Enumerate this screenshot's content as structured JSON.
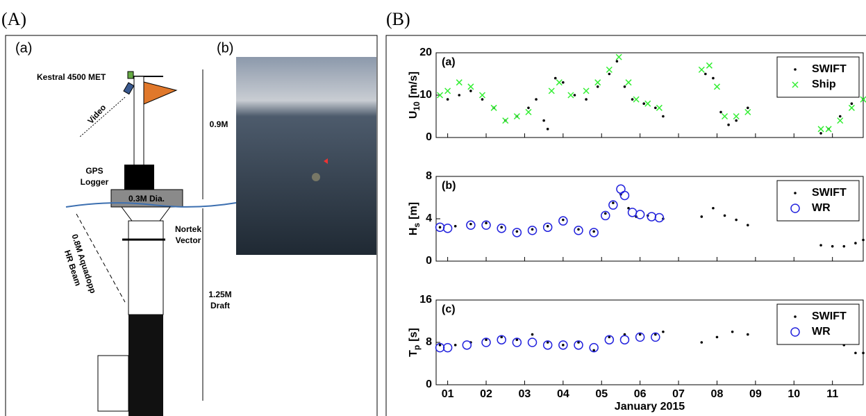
{
  "panel_labels": [
    "(A)",
    "(B)"
  ],
  "diagram": {
    "label": "(a)",
    "photo_label": "(b)",
    "kestral": "Kestral 4500 MET",
    "video": "Video",
    "gps": [
      "GPS",
      "Logger"
    ],
    "dia": "0.3M Dia.",
    "nortek": [
      "Nortek",
      "Vector"
    ],
    "aquadopp": [
      "0.8M Aquadopp",
      "HR Beam"
    ],
    "height": "0.9M",
    "draft": [
      "1.25M",
      "Draft"
    ]
  },
  "chart_data": [
    {
      "type": "scatter",
      "panel": "(a)",
      "ylabel": {
        "symbol": "U",
        "subscript": "10",
        "unit": "[m/s]"
      },
      "xlim": [
        0.7,
        11.8
      ],
      "ylim": [
        0,
        20
      ],
      "yticks": [
        0,
        10,
        20
      ],
      "legend": "upper right",
      "series": [
        {
          "name": "SWIFT",
          "color": "#000000",
          "marker": "dot",
          "x": [
            1.0,
            1.3,
            1.6,
            1.9,
            2.2,
            2.5,
            2.8,
            3.1,
            3.3,
            3.5,
            3.6,
            3.8,
            4.0,
            4.3,
            4.6,
            4.9,
            5.2,
            5.4,
            5.6,
            5.8,
            6.1,
            6.4,
            6.6,
            7.7,
            7.9,
            8.1,
            8.3,
            8.5,
            8.8,
            10.7,
            10.9,
            11.2,
            11.5,
            11.8
          ],
          "values": [
            9,
            10,
            11,
            9,
            7,
            4,
            5,
            7,
            9,
            4,
            2,
            14,
            13,
            10,
            9,
            12,
            15,
            18,
            12,
            9,
            8,
            7,
            5,
            15,
            14,
            6,
            3,
            4,
            7,
            1,
            2,
            5,
            8,
            9
          ]
        },
        {
          "name": "Ship",
          "color": "#33ee33",
          "marker": "x",
          "x": [
            0.8,
            1.0,
            1.3,
            1.6,
            1.9,
            2.2,
            2.5,
            2.8,
            3.1,
            3.7,
            3.9,
            4.2,
            4.6,
            4.9,
            5.2,
            5.45,
            5.7,
            5.9,
            6.2,
            6.5,
            7.6,
            7.8,
            8.0,
            8.2,
            8.5,
            8.8,
            10.7,
            10.9,
            11.2,
            11.5,
            11.8
          ],
          "values": [
            10,
            11,
            13,
            12,
            10,
            7,
            4,
            5,
            6,
            11,
            13,
            10,
            11,
            13,
            16,
            19,
            13,
            9,
            8,
            7,
            16,
            17,
            12,
            5,
            5,
            6,
            2,
            2,
            4,
            7,
            9
          ]
        }
      ]
    },
    {
      "type": "scatter",
      "panel": "(b)",
      "ylabel": {
        "symbol": "H",
        "subscript": "s",
        "unit": "[m]"
      },
      "xlim": [
        0.7,
        11.8
      ],
      "ylim": [
        0,
        8
      ],
      "yticks": [
        0,
        4,
        8
      ],
      "legend": "upper right",
      "series": [
        {
          "name": "SWIFT",
          "color": "#000000",
          "marker": "dot",
          "x": [
            0.8,
            1.2,
            1.6,
            2.0,
            2.4,
            2.8,
            3.2,
            3.6,
            4.0,
            4.4,
            4.8,
            5.1,
            5.3,
            5.5,
            5.7,
            5.9,
            6.2,
            6.6,
            7.6,
            7.9,
            8.2,
            8.5,
            8.8,
            10.7,
            11.0,
            11.3,
            11.6,
            11.8
          ],
          "values": [
            3.2,
            3.3,
            3.5,
            3.6,
            3.2,
            2.8,
            3.0,
            3.3,
            3.9,
            3.0,
            2.8,
            4.5,
            5.5,
            6.3,
            5.0,
            4.2,
            4.3,
            4.0,
            4.2,
            5.0,
            4.3,
            3.9,
            3.4,
            1.5,
            1.4,
            1.4,
            1.7,
            2.0
          ]
        },
        {
          "name": "WR",
          "color": "#2222dd",
          "marker": "circle",
          "x": [
            0.8,
            1.0,
            1.6,
            2.0,
            2.4,
            2.8,
            3.2,
            3.6,
            4.0,
            4.4,
            4.8,
            5.1,
            5.3,
            5.5,
            5.6,
            5.8,
            6.0,
            6.3,
            6.5
          ],
          "values": [
            3.2,
            3.1,
            3.4,
            3.4,
            3.1,
            2.7,
            2.9,
            3.2,
            3.8,
            2.9,
            2.7,
            4.3,
            5.3,
            6.8,
            6.2,
            4.6,
            4.4,
            4.2,
            4.1
          ]
        }
      ]
    },
    {
      "type": "scatter",
      "panel": "(c)",
      "ylabel": {
        "symbol": "T",
        "subscript": "p",
        "unit": "[s]"
      },
      "xlabel": "January 2015",
      "xlim": [
        0.7,
        11.8
      ],
      "ylim": [
        0,
        16
      ],
      "yticks": [
        0,
        8,
        16
      ],
      "legend": "upper right",
      "xticks": [
        {
          "value": 1,
          "label": "01"
        },
        {
          "value": 2,
          "label": "02"
        },
        {
          "value": 3,
          "label": "03"
        },
        {
          "value": 4,
          "label": "04"
        },
        {
          "value": 5,
          "label": "05"
        },
        {
          "value": 6,
          "label": "06"
        },
        {
          "value": 7,
          "label": "07"
        },
        {
          "value": 8,
          "label": "08"
        },
        {
          "value": 9,
          "label": "09"
        },
        {
          "value": 10,
          "label": "10"
        },
        {
          "value": 11,
          "label": "11"
        }
      ],
      "series": [
        {
          "name": "SWIFT",
          "color": "#000000",
          "marker": "dot",
          "x": [
            0.8,
            1.2,
            1.6,
            2.0,
            2.4,
            2.8,
            3.2,
            3.6,
            4.0,
            4.4,
            4.8,
            5.2,
            5.6,
            6.0,
            6.4,
            6.6,
            7.6,
            8.0,
            8.4,
            8.8,
            10.7,
            11.0,
            11.3,
            11.6,
            11.8
          ],
          "values": [
            7.5,
            7.5,
            8,
            8.5,
            9,
            8.5,
            9.5,
            8,
            7.5,
            8,
            6.5,
            9,
            9.5,
            9.5,
            9.5,
            10,
            8,
            9,
            10,
            9.5,
            8.5,
            8,
            7.5,
            6,
            6
          ]
        },
        {
          "name": "WR",
          "color": "#2222dd",
          "marker": "circle",
          "x": [
            0.8,
            1.0,
            1.5,
            2.0,
            2.4,
            2.8,
            3.2,
            3.6,
            4.0,
            4.4,
            4.8,
            5.2,
            5.6,
            6.0,
            6.4
          ],
          "values": [
            7,
            7,
            7.5,
            8,
            8.5,
            8,
            8,
            7.5,
            7.5,
            7.5,
            7,
            8.5,
            8.5,
            9,
            9
          ]
        }
      ]
    }
  ]
}
